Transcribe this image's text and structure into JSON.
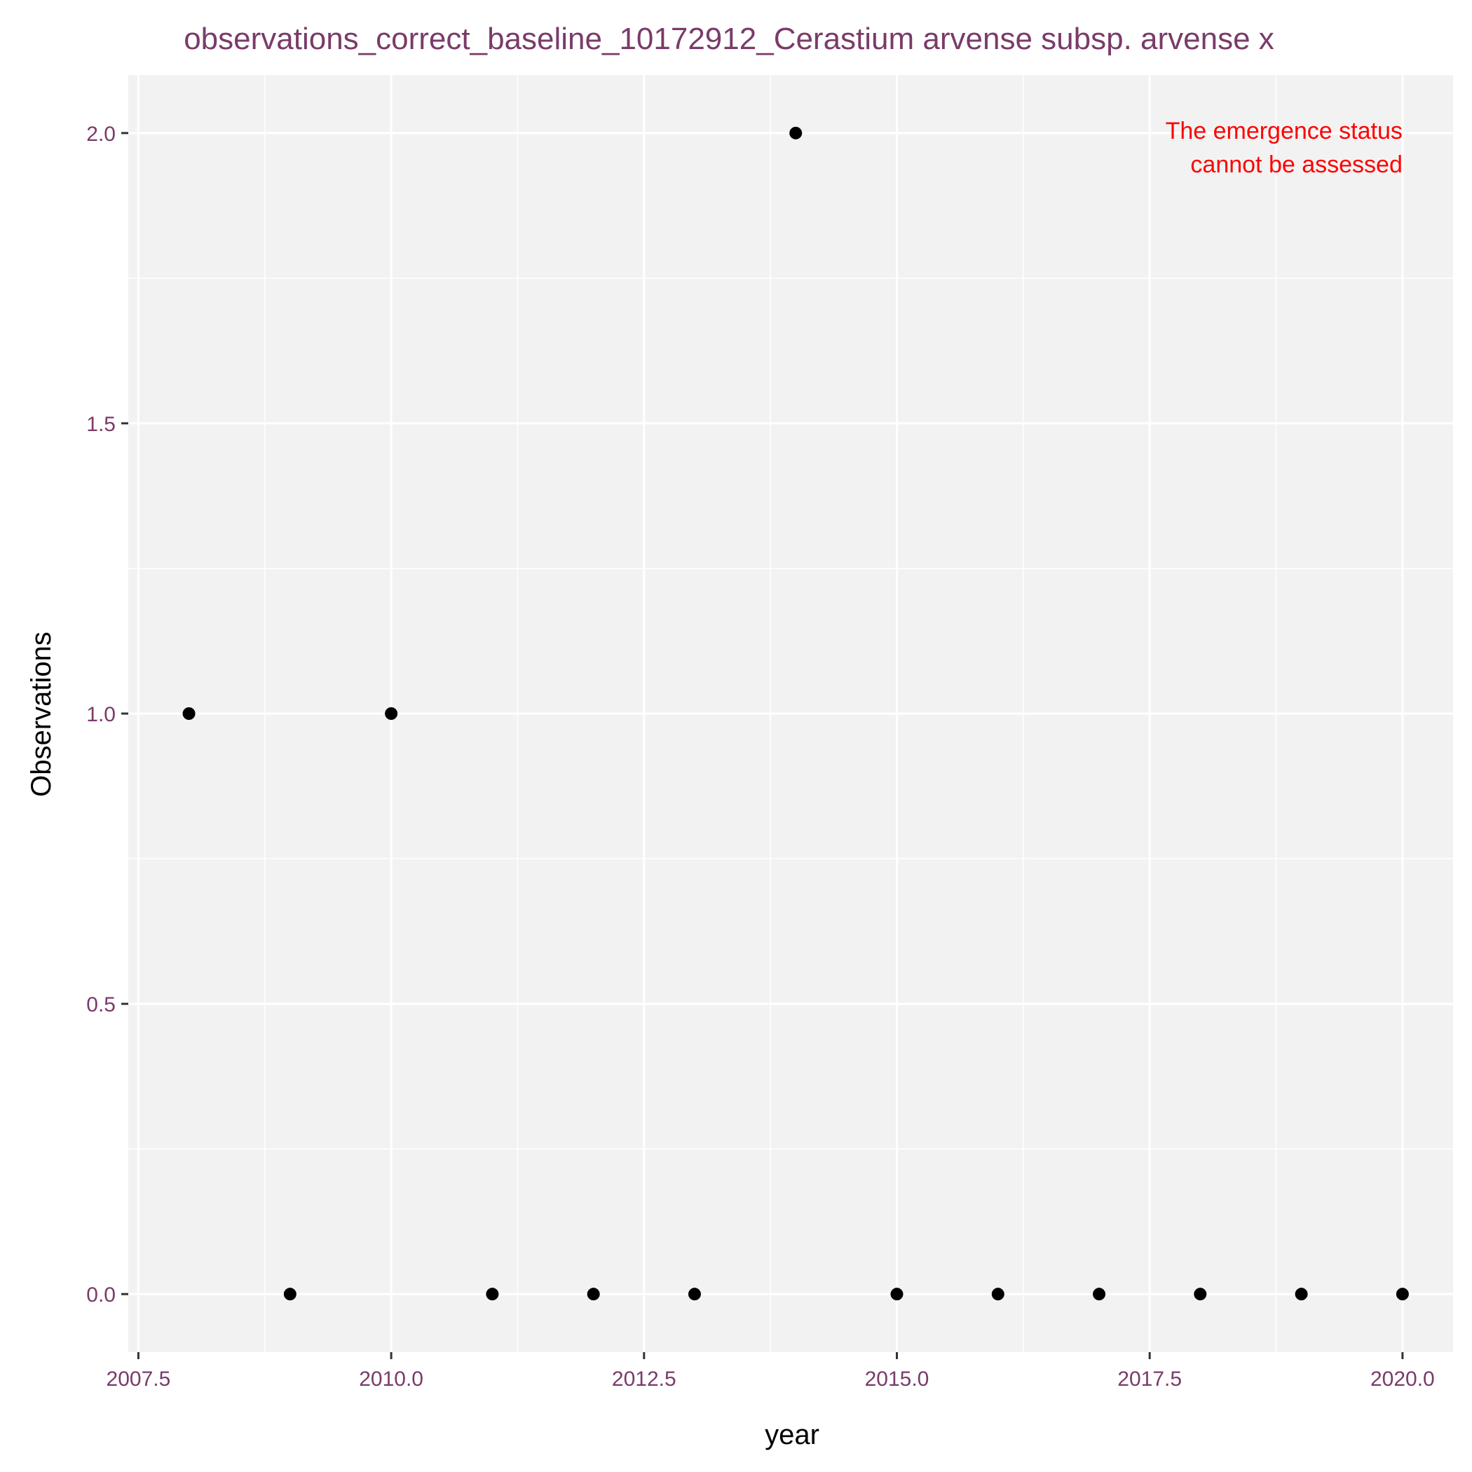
{
  "chart_data": {
    "type": "scatter",
    "title": "observations_correct_baseline_10172912_Cerastium arvense subsp. arvense x",
    "xlabel": "year",
    "ylabel": "Observations",
    "xlim": [
      2007.4,
      2020.5
    ],
    "ylim": [
      -0.1,
      2.1
    ],
    "x_ticks": [
      2007.5,
      2010.0,
      2012.5,
      2015.0,
      2017.5,
      2020.0
    ],
    "x_tick_labels": [
      "2007.5",
      "2010.0",
      "2012.5",
      "2015.0",
      "2017.5",
      "2020.0"
    ],
    "y_ticks": [
      0.0,
      0.5,
      1.0,
      1.5,
      2.0
    ],
    "y_tick_labels": [
      "0.0",
      "0.5",
      "1.0",
      "1.5",
      "2.0"
    ],
    "grid": true,
    "series": [
      {
        "x": [
          2008,
          2009,
          2010,
          2011,
          2012,
          2013,
          2014,
          2015,
          2016,
          2017,
          2018,
          2019,
          2020
        ],
        "y": [
          1,
          0,
          1,
          0,
          0,
          0,
          2,
          0,
          0,
          0,
          0,
          0,
          0
        ]
      }
    ],
    "annotations": [
      {
        "lines": [
          "The emergence status",
          "cannot be assessed"
        ],
        "x": 2020,
        "y": 2.0,
        "color": "#ff0000"
      }
    ],
    "colors": {
      "panel_background": "#f2f2f2",
      "grid": "#ffffff",
      "title": "#7a3b69",
      "tick_labels": "#7a3b69",
      "points": "#000000",
      "annotation": "#ff0000"
    }
  }
}
